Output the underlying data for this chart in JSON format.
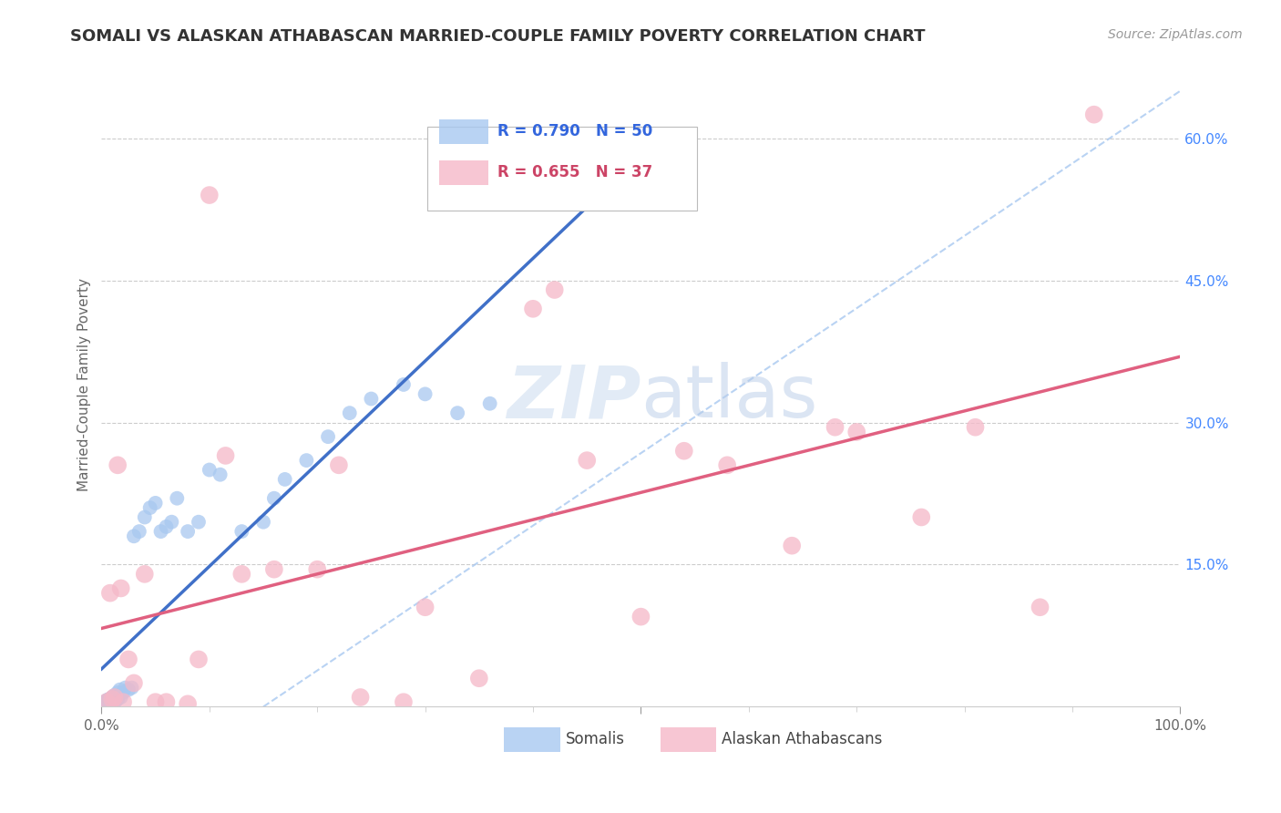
{
  "title": "SOMALI VS ALASKAN ATHABASCAN MARRIED-COUPLE FAMILY POVERTY CORRELATION CHART",
  "source": "Source: ZipAtlas.com",
  "ylabel": "Married-Couple Family Poverty",
  "xlim": [
    0,
    1.0
  ],
  "ylim": [
    0,
    0.68
  ],
  "somali_R": 0.79,
  "somali_N": 50,
  "athabascan_R": 0.655,
  "athabascan_N": 37,
  "somali_color": "#A8C8F0",
  "athabascan_color": "#F5B8C8",
  "somali_line_color": "#4070C8",
  "athabascan_line_color": "#E06080",
  "dashed_color": "#A8C8F0",
  "watermark_color": "#D8E8F8",
  "somali_x": [
    0.002,
    0.003,
    0.004,
    0.005,
    0.005,
    0.006,
    0.007,
    0.007,
    0.008,
    0.009,
    0.01,
    0.01,
    0.011,
    0.012,
    0.013,
    0.014,
    0.015,
    0.015,
    0.016,
    0.017,
    0.018,
    0.02,
    0.022,
    0.025,
    0.028,
    0.03,
    0.035,
    0.04,
    0.045,
    0.05,
    0.055,
    0.06,
    0.065,
    0.07,
    0.08,
    0.09,
    0.1,
    0.11,
    0.13,
    0.15,
    0.16,
    0.17,
    0.19,
    0.21,
    0.23,
    0.25,
    0.28,
    0.3,
    0.33,
    0.36
  ],
  "somali_y": [
    0.003,
    0.005,
    0.004,
    0.002,
    0.007,
    0.003,
    0.005,
    0.008,
    0.004,
    0.006,
    0.005,
    0.01,
    0.008,
    0.012,
    0.006,
    0.01,
    0.008,
    0.015,
    0.012,
    0.018,
    0.01,
    0.015,
    0.02,
    0.018,
    0.02,
    0.18,
    0.185,
    0.2,
    0.21,
    0.215,
    0.185,
    0.19,
    0.195,
    0.22,
    0.185,
    0.195,
    0.25,
    0.245,
    0.185,
    0.195,
    0.22,
    0.24,
    0.26,
    0.285,
    0.31,
    0.325,
    0.34,
    0.33,
    0.31,
    0.32
  ],
  "athabascan_x": [
    0.005,
    0.008,
    0.01,
    0.012,
    0.015,
    0.018,
    0.02,
    0.025,
    0.03,
    0.04,
    0.05,
    0.06,
    0.08,
    0.09,
    0.1,
    0.115,
    0.13,
    0.16,
    0.2,
    0.22,
    0.24,
    0.28,
    0.3,
    0.35,
    0.4,
    0.42,
    0.45,
    0.5,
    0.54,
    0.58,
    0.64,
    0.68,
    0.7,
    0.76,
    0.81,
    0.87,
    0.92
  ],
  "athabascan_y": [
    0.005,
    0.12,
    0.008,
    0.01,
    0.255,
    0.125,
    0.005,
    0.05,
    0.025,
    0.14,
    0.005,
    0.005,
    0.003,
    0.05,
    0.54,
    0.265,
    0.14,
    0.145,
    0.145,
    0.255,
    0.01,
    0.005,
    0.105,
    0.03,
    0.42,
    0.44,
    0.26,
    0.095,
    0.27,
    0.255,
    0.17,
    0.295,
    0.29,
    0.2,
    0.295,
    0.105,
    0.625
  ]
}
